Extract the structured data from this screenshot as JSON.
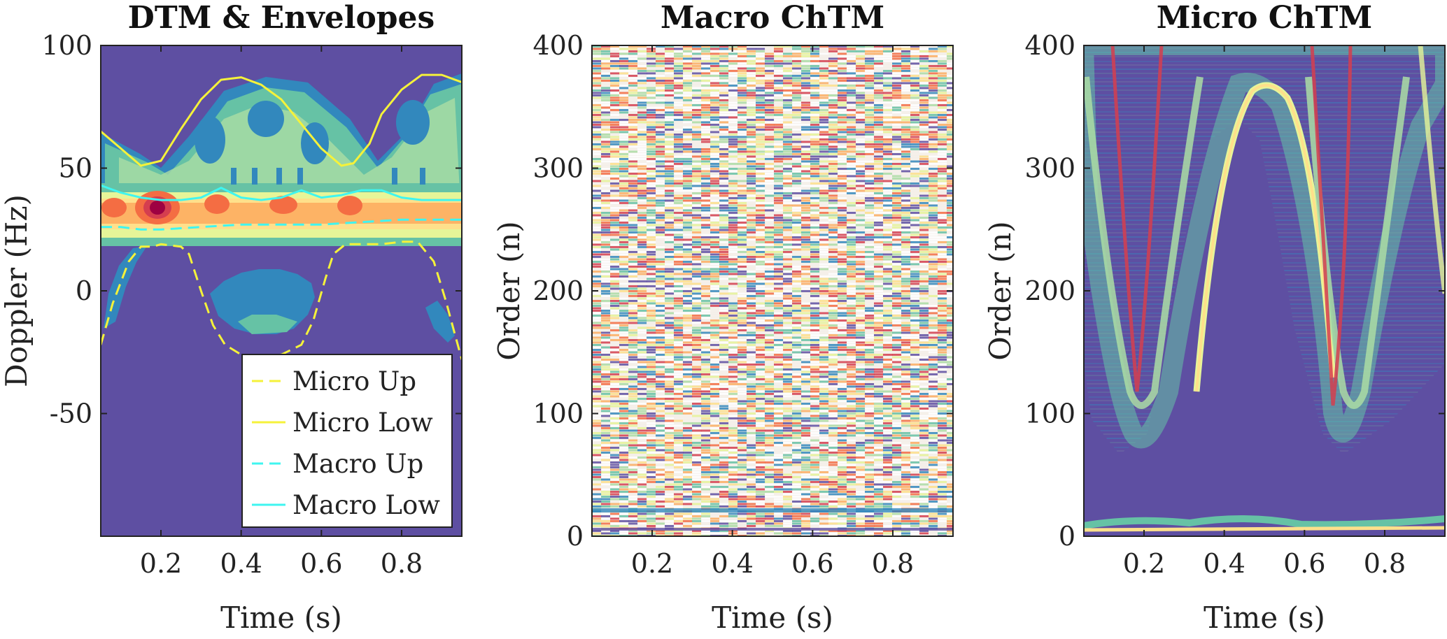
{
  "chart_data": [
    {
      "type": "heatmap",
      "title": "DTM & Envelopes",
      "xlabel": "Time (s)",
      "ylabel": "Doppler (Hz)",
      "xlim": [
        0.05,
        0.95
      ],
      "ylim": [
        -100,
        100
      ],
      "xticks": [
        0.2,
        0.4,
        0.6,
        0.8
      ],
      "xtick_labels": [
        "0.2",
        "0.4",
        "0.6",
        "0.8"
      ],
      "yticks": [
        100,
        50,
        0,
        -50
      ],
      "ytick_labels": [
        "100",
        "50",
        "0",
        "-50"
      ],
      "background_color": "#5e4fa2",
      "legend": {
        "position": "bottom-right",
        "entries": [
          {
            "label": "Micro Up",
            "color": "#f5f23a",
            "style": "dashed"
          },
          {
            "label": "Micro Low",
            "color": "#f5f23a",
            "style": "solid"
          },
          {
            "label": "Macro Up",
            "color": "#3ff5f0",
            "style": "dashed"
          },
          {
            "label": "Macro Low",
            "color": "#3ff5f0",
            "style": "solid"
          }
        ]
      },
      "series": [
        {
          "name": "Micro Low",
          "color": "#f5f23a",
          "style": "solid",
          "x": [
            0.05,
            0.1,
            0.15,
            0.2,
            0.25,
            0.3,
            0.35,
            0.4,
            0.45,
            0.5,
            0.55,
            0.6,
            0.65,
            0.68,
            0.72,
            0.75,
            0.8,
            0.85,
            0.9,
            0.95
          ],
          "y": [
            65,
            58,
            51,
            53,
            66,
            78,
            86,
            87,
            84,
            78,
            68,
            58,
            51,
            52,
            60,
            72,
            82,
            88,
            88,
            85
          ]
        },
        {
          "name": "Macro Low",
          "color": "#3ff5f0",
          "style": "solid",
          "x": [
            0.05,
            0.1,
            0.15,
            0.2,
            0.25,
            0.3,
            0.35,
            0.4,
            0.45,
            0.5,
            0.55,
            0.6,
            0.65,
            0.7,
            0.75,
            0.8,
            0.85,
            0.9,
            0.95
          ],
          "y": [
            43,
            40,
            38,
            37,
            37,
            38,
            42,
            38,
            37,
            38,
            41,
            38,
            39,
            41,
            41,
            38,
            37,
            37,
            37
          ]
        },
        {
          "name": "Macro Up",
          "color": "#3ff5f0",
          "style": "dashed",
          "x": [
            0.05,
            0.1,
            0.15,
            0.2,
            0.3,
            0.4,
            0.5,
            0.6,
            0.7,
            0.8,
            0.9,
            0.95
          ],
          "y": [
            26,
            26,
            25,
            25,
            26,
            27,
            27,
            27,
            28,
            29,
            29,
            29
          ]
        },
        {
          "name": "Micro Up",
          "color": "#f5f23a",
          "style": "dashed",
          "x": [
            0.05,
            0.08,
            0.12,
            0.15,
            0.18,
            0.2,
            0.25,
            0.27,
            0.3,
            0.33,
            0.36,
            0.4,
            0.45,
            0.5,
            0.55,
            0.58,
            0.61,
            0.63,
            0.66,
            0.7,
            0.75,
            0.8,
            0.84,
            0.88,
            0.91,
            0.93,
            0.95
          ],
          "y": [
            -22,
            -5,
            12,
            18,
            18,
            19,
            18,
            15,
            0,
            -14,
            -22,
            -26,
            -27,
            -26,
            -22,
            -12,
            5,
            15,
            19,
            19,
            19,
            20,
            20,
            12,
            -4,
            -16,
            -28
          ]
        }
      ]
    },
    {
      "type": "heatmap",
      "title": "Macro ChTM",
      "xlabel": "Time (s)",
      "ylabel": "Order (n)",
      "xlim": [
        0.05,
        0.95
      ],
      "ylim": [
        0,
        400
      ],
      "xticks": [
        0.2,
        0.4,
        0.6,
        0.8
      ],
      "xtick_labels": [
        "0.2",
        "0.4",
        "0.6",
        "0.8"
      ],
      "yticks": [
        400,
        300,
        200,
        100,
        0
      ],
      "ytick_labels": [
        "400",
        "300",
        "200",
        "100",
        "0"
      ],
      "description_colormap": "spectral"
    },
    {
      "type": "heatmap",
      "title": "Micro ChTM",
      "xlabel": "Time (s)",
      "ylabel": "Order (n)",
      "xlim": [
        0.05,
        0.95
      ],
      "ylim": [
        0,
        400
      ],
      "xticks": [
        0.2,
        0.4,
        0.6,
        0.8
      ],
      "xtick_labels": [
        "0.2",
        "0.4",
        "0.6",
        "0.8"
      ],
      "yticks": [
        400,
        300,
        200,
        100,
        0
      ],
      "ytick_labels": [
        "400",
        "300",
        "200",
        "100",
        "0"
      ],
      "background_color": "#5e4fa2"
    }
  ]
}
